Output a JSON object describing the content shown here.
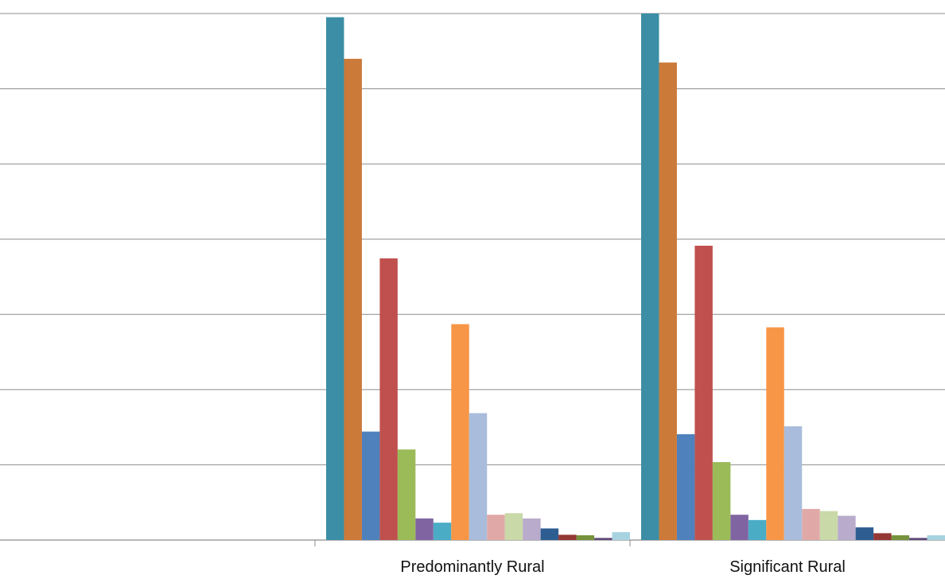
{
  "chart_data": {
    "type": "bar",
    "categories": [
      "",
      "Predominantly Rural",
      "Significant Rural"
    ],
    "series_values": [
      [
        null,
        99.3,
        100
      ],
      [
        null,
        91.4,
        90.7
      ],
      [
        null,
        20.6,
        20.1
      ],
      [
        null,
        53.5,
        55.9
      ],
      [
        null,
        17.2,
        14.8
      ],
      [
        null,
        4.1,
        4.8
      ],
      [
        null,
        3.3,
        3.8
      ],
      [
        null,
        41.0,
        40.4
      ],
      [
        null,
        24.1,
        21.6
      ],
      [
        null,
        4.8,
        5.9
      ],
      [
        null,
        5.1,
        5.5
      ],
      [
        null,
        4.1,
        4.6
      ],
      [
        null,
        2.2,
        2.4
      ],
      [
        null,
        1.0,
        1.3
      ],
      [
        null,
        0.9,
        0.9
      ],
      [
        null,
        0.4,
        0.4
      ],
      [
        null,
        1.5,
        0.9
      ]
    ],
    "series_colors": [
      "#3B8EA5",
      "#CC7A3A",
      "#4F81BD",
      "#C0504D",
      "#9BBB59",
      "#8064A2",
      "#4BACC6",
      "#F79646",
      "#A9BCDB",
      "#E0A9A7",
      "#C9D9A8",
      "#B8ABCB",
      "#2E5D91",
      "#953735",
      "#76923C",
      "#5F497A",
      "#A7D3E1"
    ],
    "ylim": [
      0,
      100
    ],
    "grid": true
  }
}
